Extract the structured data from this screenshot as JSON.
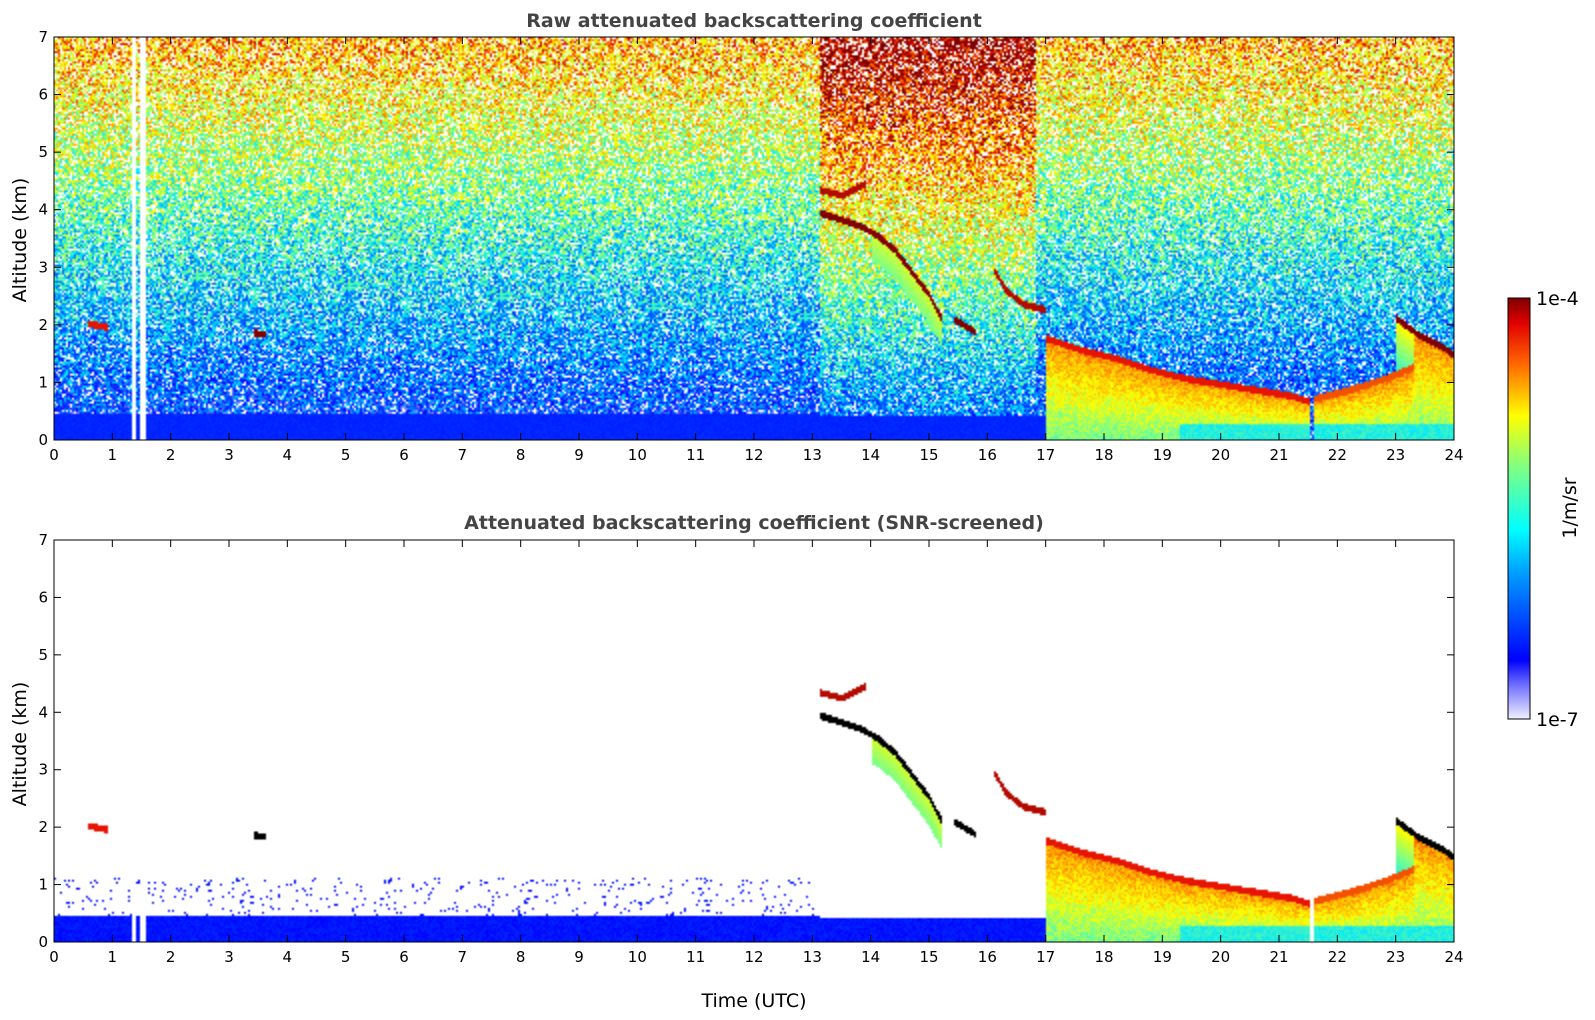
{
  "chart_data": [
    {
      "type": "heatmap",
      "title": "Raw attenuated backscattering coefficient",
      "xlabel": "",
      "ylabel": "Altitude (km)",
      "xlim": [
        0,
        24
      ],
      "ylim": [
        0,
        7
      ],
      "xticks": [
        "0",
        "1",
        "2",
        "3",
        "4",
        "5",
        "6",
        "7",
        "8",
        "9",
        "10",
        "11",
        "12",
        "13",
        "14",
        "15",
        "16",
        "17",
        "18",
        "19",
        "20",
        "21",
        "22",
        "23",
        "24"
      ],
      "yticks": [
        "0",
        "1",
        "2",
        "3",
        "4",
        "5",
        "6",
        "7"
      ],
      "data_gaps_hours": [
        [
          1.32,
          1.38
        ],
        [
          1.45,
          1.56
        ]
      ],
      "background_regions": [
        {
          "x": [
            0,
            13.1
          ],
          "description_level": "noise rising with altitude from blue near ground to yellow-green aloft"
        },
        {
          "x": [
            13.1,
            16.8
          ],
          "description_level": "enhanced noise, orange-red above 4.5 km"
        },
        {
          "x": [
            16.8,
            24
          ],
          "description_level": "noise yellow-green aloft"
        }
      ],
      "layers": [
        {
          "x": [
            13.1,
            13.4,
            13.8,
            14.1,
            14.4,
            14.7,
            15.0,
            15.2
          ],
          "y": [
            3.95,
            3.85,
            3.72,
            3.55,
            3.3,
            2.9,
            2.5,
            2.1
          ],
          "level": 1.0
        },
        {
          "x": [
            13.1,
            13.5,
            13.9
          ],
          "y": [
            4.35,
            4.25,
            4.45
          ],
          "level": 0.95
        },
        {
          "x": [
            15.4,
            15.8
          ],
          "y": [
            2.1,
            1.85
          ],
          "level": 1.0
        },
        {
          "x": [
            16.1,
            16.3,
            16.6,
            17.0
          ],
          "y": [
            2.95,
            2.6,
            2.35,
            2.25
          ],
          "level": 0.95
        },
        {
          "x": [
            17.0,
            17.6,
            18.2,
            18.8,
            19.4,
            20.0,
            20.6,
            21.2,
            21.5
          ],
          "y": [
            1.75,
            1.55,
            1.4,
            1.2,
            1.05,
            0.95,
            0.85,
            0.75,
            0.65
          ],
          "level": 0.9
        },
        {
          "x": [
            21.6,
            22.2,
            22.8,
            23.3
          ],
          "y": [
            0.7,
            0.85,
            1.05,
            1.25
          ],
          "level": 0.85
        },
        {
          "x": [
            23.0,
            23.4,
            23.8,
            24.0
          ],
          "y": [
            2.1,
            1.8,
            1.6,
            1.45
          ],
          "level": 1.0
        },
        {
          "x": [
            0.55,
            0.9
          ],
          "y": [
            2.02,
            1.95
          ],
          "level": 0.9
        },
        {
          "x": [
            3.4,
            3.6
          ],
          "y": [
            1.85,
            1.82
          ],
          "level": 1.0
        }
      ],
      "boundary_layer_top_km": [
        0.5,
        0.45,
        0.4,
        0.35
      ]
    },
    {
      "type": "heatmap",
      "title": "Attenuated backscattering coefficient (SNR-screened)",
      "xlabel": "Time (UTC)",
      "ylabel": "Altitude (km)",
      "xlim": [
        0,
        24
      ],
      "ylim": [
        0,
        7
      ],
      "xticks": [
        "0",
        "1",
        "2",
        "3",
        "4",
        "5",
        "6",
        "7",
        "8",
        "9",
        "10",
        "11",
        "12",
        "13",
        "14",
        "15",
        "16",
        "17",
        "18",
        "19",
        "20",
        "21",
        "22",
        "23",
        "24"
      ],
      "yticks": [
        "0",
        "1",
        "2",
        "3",
        "4",
        "5",
        "6",
        "7"
      ],
      "screened": true
    }
  ],
  "colorbar": {
    "label": "1/m/sr",
    "max_label": "1e-4",
    "min_label": "1e-7",
    "colormap": "jet"
  }
}
